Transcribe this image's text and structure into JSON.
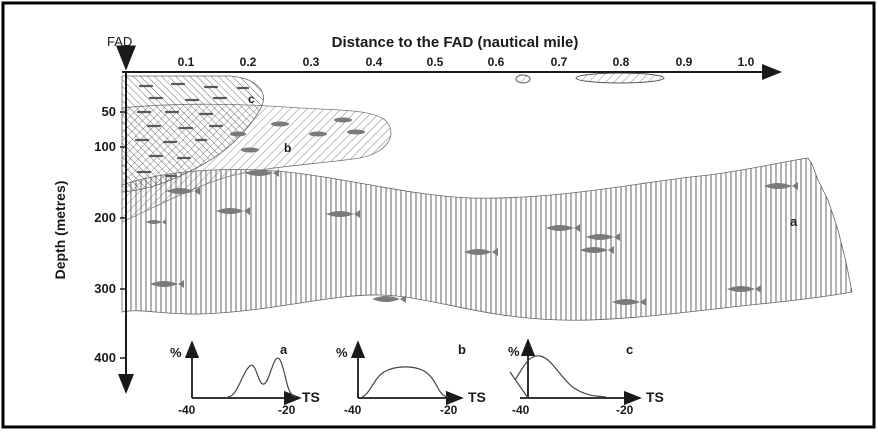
{
  "figure": {
    "fad_label": "FAD",
    "x_axis_title": "Distance to the FAD (nautical mile)",
    "y_axis_title": "Depth (metres)",
    "x_ticks": [
      "0.1",
      "0.2",
      "0.3",
      "0.4",
      "0.5",
      "0.6",
      "0.7",
      "0.8",
      "0.9",
      "1.0"
    ],
    "y_ticks": [
      "50",
      "100",
      "200",
      "300",
      "400"
    ],
    "layer_labels": {
      "a": "a",
      "b": "b",
      "c": "c"
    }
  },
  "insets": [
    {
      "id": "a",
      "label": "a",
      "y_label": "%",
      "x_label": "TS",
      "x_min_label": "-40",
      "x_max_label": "-20",
      "shape": "bimodal"
    },
    {
      "id": "b",
      "label": "b",
      "y_label": "%",
      "x_label": "TS",
      "x_min_label": "-40",
      "x_max_label": "-20",
      "shape": "broad"
    },
    {
      "id": "c",
      "label": "c",
      "y_label": "%",
      "x_label": "TS",
      "x_min_label": "-40",
      "x_max_label": "-20",
      "shape": "skewed-left"
    }
  ],
  "colors": {
    "ink": "#1a1a1a",
    "fish": "#7a7a7a",
    "hatch": "#555555",
    "border": "#000000"
  }
}
